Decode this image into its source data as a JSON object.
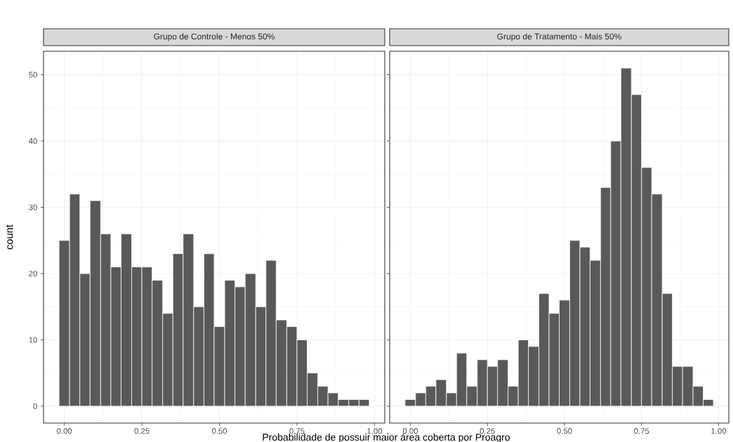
{
  "chart_data": [
    {
      "type": "histogram",
      "title": "Grupo de Controle - Menos 50%",
      "xlabel": "Probabilidade de possuir maior área coberta por Proagro",
      "ylabel": "count",
      "color": "#595959",
      "grid": true,
      "bins": [
        -0.017,
        0.017,
        0.05,
        0.083,
        0.117,
        0.15,
        0.183,
        0.217,
        0.25,
        0.283,
        0.317,
        0.35,
        0.383,
        0.417,
        0.45,
        0.483,
        0.517,
        0.55,
        0.583,
        0.617,
        0.65,
        0.683,
        0.717,
        0.75,
        0.783,
        0.817,
        0.85,
        0.883,
        0.917,
        0.95,
        0.983
      ],
      "values": [
        25,
        32,
        20,
        31,
        26,
        21,
        26,
        21,
        21,
        19,
        14,
        23,
        26,
        15,
        23,
        12,
        19,
        18,
        20,
        15,
        22,
        13,
        12,
        10,
        5,
        3,
        2,
        1,
        1,
        1
      ],
      "xlim": [
        -0.067,
        1.033
      ],
      "ylim": [
        -2.55,
        53.55
      ],
      "xticks": [
        {
          "value": 0,
          "label": "0.00"
        },
        {
          "value": 0.25,
          "label": "0.25"
        },
        {
          "value": 0.5,
          "label": "0.50"
        },
        {
          "value": 0.75,
          "label": "0.75"
        },
        {
          "value": 1,
          "label": "1.00"
        }
      ],
      "yticks": [
        0,
        10,
        20,
        30,
        40,
        50
      ]
    },
    {
      "type": "histogram",
      "title": "Grupo de Tratamento - Mais 50%",
      "color": "#595959",
      "grid": true,
      "tick_labels": "x",
      "bins": [
        -0.017,
        0.017,
        0.05,
        0.083,
        0.117,
        0.15,
        0.183,
        0.217,
        0.25,
        0.283,
        0.317,
        0.35,
        0.383,
        0.417,
        0.45,
        0.483,
        0.517,
        0.55,
        0.583,
        0.617,
        0.65,
        0.683,
        0.717,
        0.75,
        0.783,
        0.817,
        0.85,
        0.883,
        0.917,
        0.95,
        0.983
      ],
      "values": [
        1,
        2,
        3,
        4,
        2,
        8,
        3,
        7,
        6,
        7,
        3,
        10,
        9,
        17,
        14,
        16,
        25,
        24,
        22,
        33,
        40,
        51,
        47,
        36,
        32,
        17,
        6,
        6,
        3,
        1
      ],
      "xlim": [
        -0.067,
        1.033
      ],
      "ylim": [
        -2.55,
        53.55
      ],
      "xticks": [
        {
          "value": 0,
          "label": "0.00"
        },
        {
          "value": 0.25,
          "label": "0.25"
        },
        {
          "value": 0.5,
          "label": "0.50"
        },
        {
          "value": 0.75,
          "label": "0.75"
        },
        {
          "value": 1,
          "label": "1.00"
        }
      ],
      "yticks": [
        0,
        10,
        20,
        30,
        40,
        50
      ]
    }
  ]
}
